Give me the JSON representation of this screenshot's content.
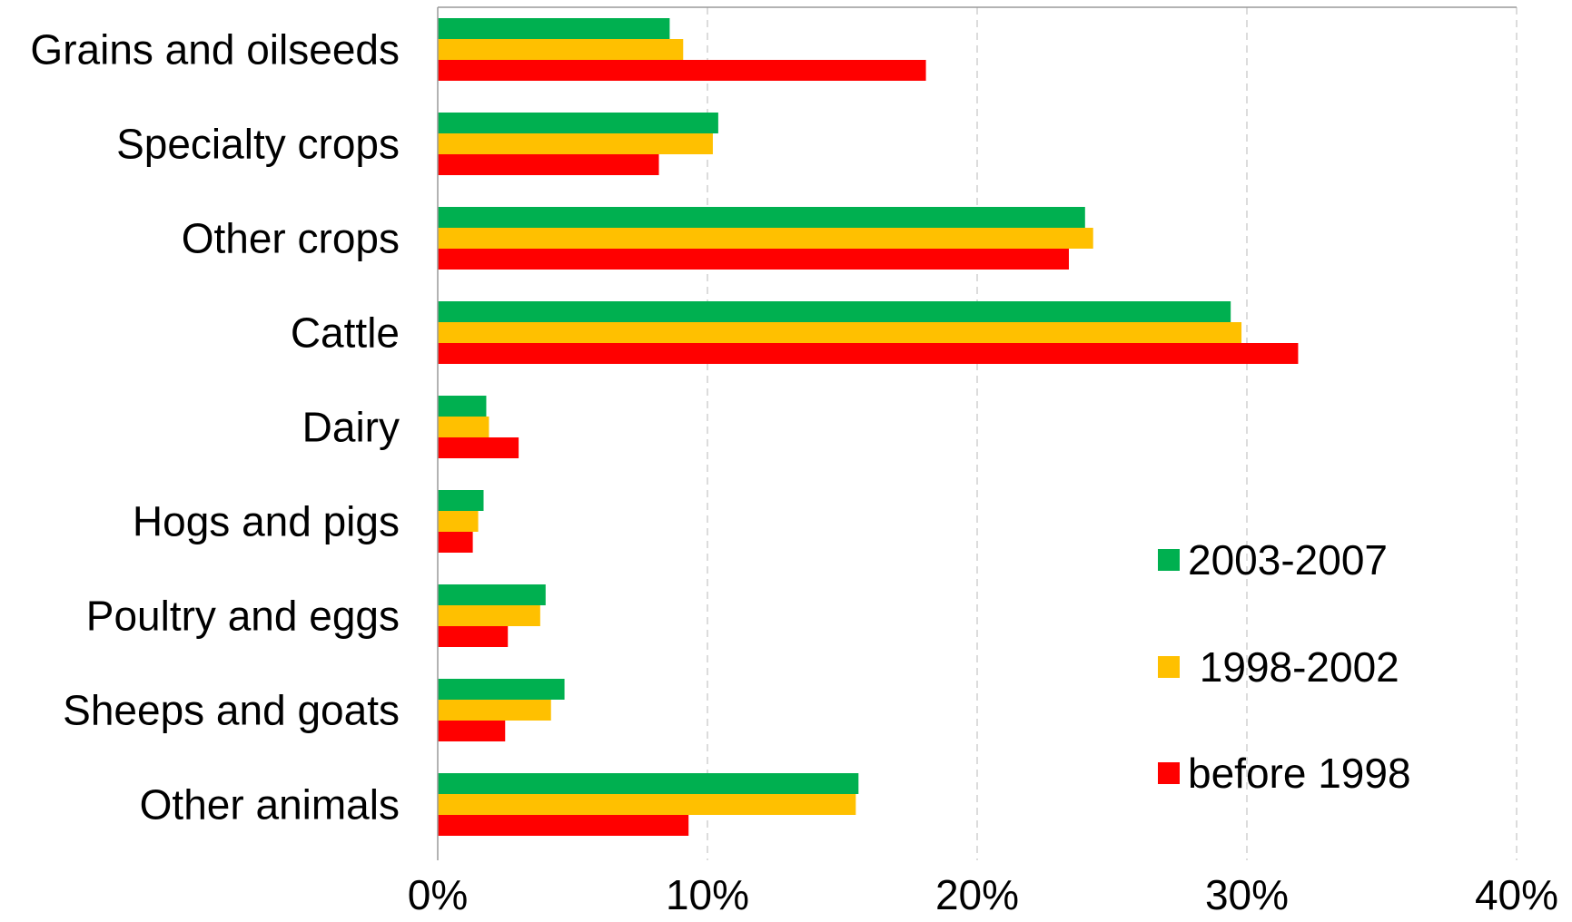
{
  "chart_data": {
    "type": "bar",
    "orientation": "horizontal",
    "categories": [
      "Grains and oilseeds",
      "Specialty crops",
      "Other crops",
      "Cattle",
      "Dairy",
      "Hogs and pigs",
      "Poultry and eggs",
      "Sheeps and goats",
      "Other animals"
    ],
    "series": [
      {
        "name": "2003-2007",
        "color": "#00B050",
        "values": [
          8.6,
          10.4,
          24.0,
          29.4,
          1.8,
          1.7,
          4.0,
          4.7,
          15.6
        ]
      },
      {
        "name": "1998-2002",
        "color": "#FFC000",
        "values": [
          9.1,
          10.2,
          24.3,
          29.8,
          1.9,
          1.5,
          3.8,
          4.2,
          15.5
        ]
      },
      {
        "name": "before 1998",
        "color": "#FF0000",
        "values": [
          18.1,
          8.2,
          23.4,
          31.9,
          3.0,
          1.3,
          2.6,
          2.5,
          9.3
        ]
      }
    ],
    "legend_labels": [
      "2003-2007",
      " 1998-2002",
      "before 1998"
    ],
    "xlim": [
      0,
      40
    ],
    "x_ticks": [
      0,
      10,
      20,
      30,
      40
    ],
    "x_tick_labels": [
      "0%",
      "10%",
      "20%",
      "30%",
      "40%"
    ],
    "unit": "%",
    "grid": "vertical dashed",
    "legend_position": "right-bottom",
    "title": "",
    "xlabel": "",
    "ylabel": ""
  }
}
